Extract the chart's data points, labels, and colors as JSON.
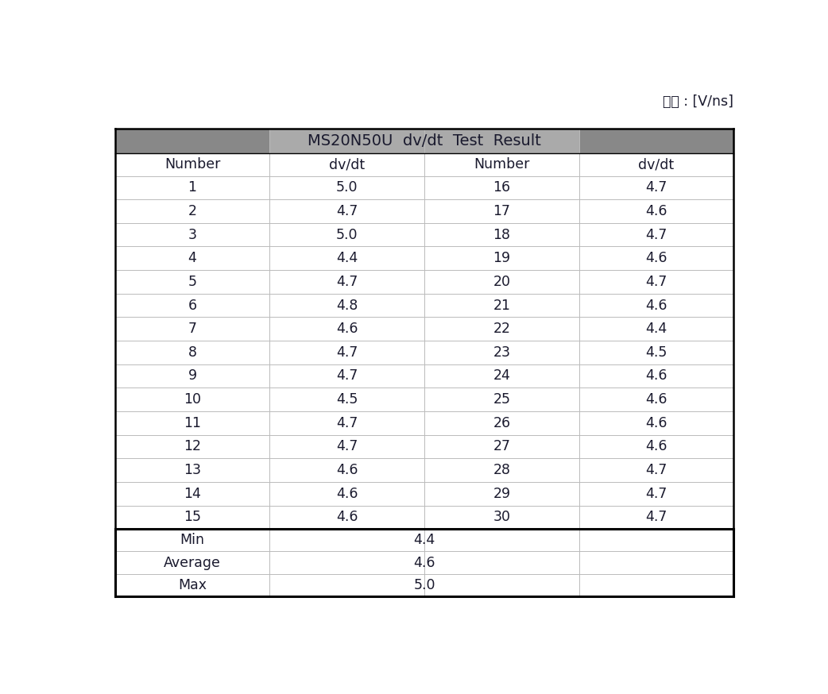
{
  "title": "MS20N50U  dv/dt  Test  Result",
  "unit_label": "단위 : [V/ns]",
  "col_headers": [
    "Number",
    "dv/dt",
    "Number",
    "dv/dt"
  ],
  "data_left": [
    [
      1,
      "5.0"
    ],
    [
      2,
      "4.7"
    ],
    [
      3,
      "5.0"
    ],
    [
      4,
      "4.4"
    ],
    [
      5,
      "4.7"
    ],
    [
      6,
      "4.8"
    ],
    [
      7,
      "4.6"
    ],
    [
      8,
      "4.7"
    ],
    [
      9,
      "4.7"
    ],
    [
      10,
      "4.5"
    ],
    [
      11,
      "4.7"
    ],
    [
      12,
      "4.7"
    ],
    [
      13,
      "4.6"
    ],
    [
      14,
      "4.6"
    ],
    [
      15,
      "4.6"
    ]
  ],
  "data_right": [
    [
      16,
      "4.7"
    ],
    [
      17,
      "4.6"
    ],
    [
      18,
      "4.7"
    ],
    [
      19,
      "4.6"
    ],
    [
      20,
      "4.7"
    ],
    [
      21,
      "4.6"
    ],
    [
      22,
      "4.4"
    ],
    [
      23,
      "4.5"
    ],
    [
      24,
      "4.6"
    ],
    [
      25,
      "4.6"
    ],
    [
      26,
      "4.6"
    ],
    [
      27,
      "4.6"
    ],
    [
      28,
      "4.7"
    ],
    [
      29,
      "4.7"
    ],
    [
      30,
      "4.7"
    ]
  ],
  "summary_labels": [
    "Min",
    "Average",
    "Max"
  ],
  "summary_values": [
    "4.4",
    "4.6",
    "5.0"
  ],
  "title_bg_center": "#aaaaaa",
  "title_bg_sides": "#888888",
  "row_line_color": "#bbbbbb",
  "text_color": "#1a1a2e",
  "font_size": 12.5,
  "header_font_size": 12.5,
  "title_font_size": 14
}
